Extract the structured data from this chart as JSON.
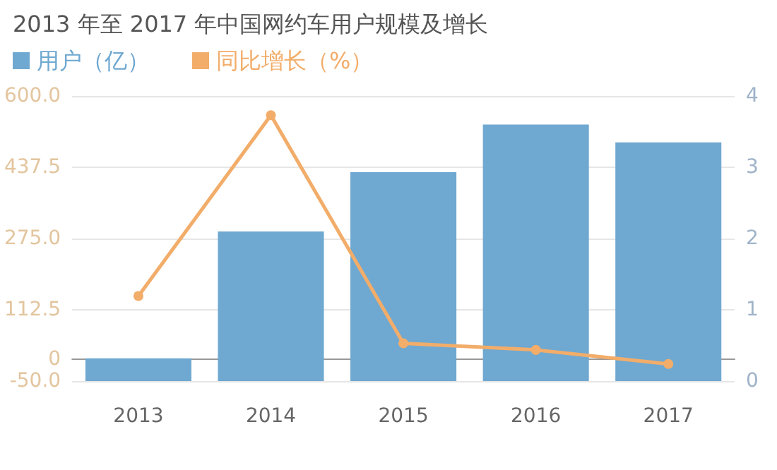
{
  "chart_data": {
    "type": "bar",
    "title": "2013 年至 2017 年中国网约车用户规模及增长",
    "categories": [
      "2013",
      "2014",
      "2015",
      "2016",
      "2017"
    ],
    "series": [
      {
        "name": "用户（亿）",
        "axis": "y2",
        "color": "#6fa8d0",
        "values": [
          0.32,
          2.1,
          2.93,
          3.6,
          3.35
        ]
      },
      {
        "name": "同比增长（%）",
        "type": "line",
        "color": "#f2ad6a",
        "marker": "circle",
        "values": [
          144,
          556,
          36,
          21,
          -11
        ]
      }
    ],
    "ylim": [
      -50,
      600
    ],
    "yticks": [
      {
        "value": -50,
        "label": "-50.0"
      },
      0,
      {
        "value": 112.5,
        "label": "112.5"
      },
      {
        "value": 275,
        "label": "275.0"
      },
      {
        "value": 437.5,
        "label": "437.5"
      },
      {
        "value": 600,
        "label": "600.0"
      }
    ],
    "y2lim": [
      0,
      4
    ],
    "y2ticks": [
      0,
      1,
      2,
      3,
      4
    ],
    "grid": "y",
    "legend": "top left"
  }
}
